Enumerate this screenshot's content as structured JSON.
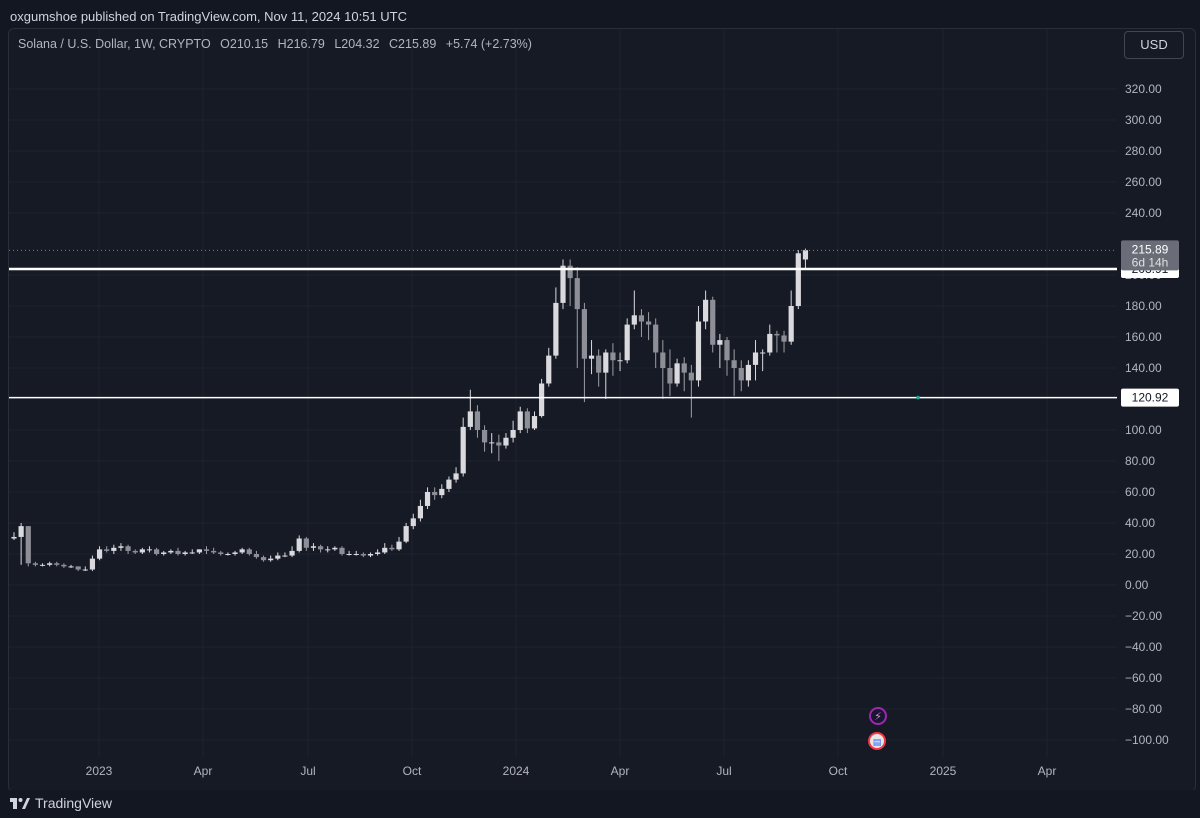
{
  "publisher": "oxgumshoe published on TradingView.com, Nov 11, 2024 10:51 UTC",
  "legend": {
    "symbol": "Solana / U.S. Dollar, 1W, CRYPTO",
    "open": "O210.15",
    "high": "H216.79",
    "low": "L204.32",
    "close": "C215.89",
    "change": "+5.74 (+2.73%)"
  },
  "currency": "USD",
  "brand": "TradingView",
  "colors": {
    "background": "#161a25",
    "candle_body": "#9e9ea6",
    "candle_wick": "#9e9ea6",
    "level_line": "#ffffff",
    "grid": "#1e222d"
  },
  "chart_data": {
    "type": "candlestick",
    "x_labels": [
      "2023",
      "Apr",
      "Jul",
      "Oct",
      "2024",
      "Apr",
      "Jul",
      "Oct",
      "2025",
      "Apr"
    ],
    "y_ticks": [
      320,
      300,
      280,
      260,
      240,
      200,
      180,
      160,
      140,
      100,
      80,
      60,
      40,
      20,
      0,
      -20,
      -40,
      -60,
      -80,
      -100
    ],
    "y_tick_labels": [
      "320.00",
      "300.00",
      "280.00",
      "260.00",
      "240.00",
      "200.00",
      "180.00",
      "160.00",
      "140.00",
      "100.00",
      "80.00",
      "60.00",
      "40.00",
      "20.00",
      "0.00",
      "−20.00",
      "−40.00",
      "−60.00",
      "−80.00",
      "−100.00"
    ],
    "ylim": [
      -110,
      335
    ],
    "horizontal_levels": [
      {
        "value": 203.91,
        "label": "203.91"
      },
      {
        "value": 120.92,
        "label": "120.92"
      }
    ],
    "last_price": {
      "value": 215.89,
      "label": "215.89",
      "countdown": "6d 14h"
    },
    "closes": [
      31,
      38,
      14,
      13,
      13,
      14,
      13,
      12,
      12,
      10,
      10,
      17,
      23,
      22,
      24,
      25,
      22,
      21,
      23,
      23,
      20,
      21,
      22,
      20,
      21,
      21,
      23,
      22,
      21,
      20,
      20,
      21,
      23,
      20,
      18,
      16,
      17,
      19,
      19,
      22,
      30,
      24,
      25,
      23,
      23,
      24,
      20,
      20,
      20,
      19,
      20,
      21,
      24,
      23,
      28,
      38,
      43,
      51,
      60,
      58,
      62,
      68,
      72,
      102,
      112,
      100,
      92,
      92,
      90,
      95,
      100,
      112,
      101,
      109,
      130,
      148,
      182,
      206,
      198,
      178,
      146,
      148,
      137,
      150,
      145,
      145,
      168,
      174,
      170,
      168,
      150,
      140,
      130,
      143,
      137,
      132,
      170,
      184,
      155,
      158,
      145,
      140,
      132,
      142,
      150,
      150,
      162,
      161,
      157,
      180,
      214,
      216
    ],
    "opens": [
      30,
      31,
      38,
      14,
      13,
      13,
      14,
      13,
      12,
      12,
      10,
      10,
      17,
      23,
      22,
      24,
      25,
      22,
      21,
      23,
      23,
      20,
      21,
      22,
      20,
      21,
      21,
      23,
      22,
      21,
      20,
      20,
      21,
      23,
      20,
      18,
      16,
      17,
      19,
      19,
      22,
      30,
      24,
      25,
      23,
      23,
      24,
      20,
      20,
      20,
      19,
      20,
      21,
      24,
      23,
      28,
      38,
      43,
      51,
      60,
      58,
      62,
      68,
      72,
      102,
      112,
      100,
      92,
      92,
      90,
      95,
      100,
      112,
      101,
      109,
      130,
      148,
      182,
      206,
      198,
      178,
      146,
      148,
      137,
      150,
      145,
      145,
      168,
      174,
      170,
      168,
      150,
      140,
      130,
      143,
      137,
      132,
      170,
      184,
      155,
      158,
      145,
      140,
      132,
      142,
      150,
      150,
      162,
      161,
      157,
      180,
      210
    ],
    "highs": [
      34,
      40,
      36,
      15,
      14,
      15,
      15,
      14,
      13,
      12,
      12,
      19,
      25,
      25,
      26,
      27,
      26,
      23,
      24,
      25,
      24,
      22,
      23,
      24,
      22,
      23,
      23,
      25,
      24,
      22,
      21,
      22,
      24,
      24,
      22,
      19,
      19,
      21,
      21,
      25,
      32,
      31,
      27,
      26,
      25,
      25,
      25,
      22,
      22,
      21,
      21,
      23,
      27,
      26,
      31,
      40,
      46,
      55,
      63,
      63,
      65,
      70,
      76,
      108,
      126,
      116,
      103,
      98,
      97,
      98,
      106,
      115,
      114,
      112,
      133,
      153,
      192,
      210,
      210,
      205,
      182,
      158,
      152,
      152,
      156,
      150,
      172,
      190,
      178,
      176,
      172,
      158,
      152,
      146,
      147,
      142,
      180,
      190,
      186,
      162,
      160,
      152,
      145,
      145,
      158,
      152,
      168,
      164,
      164,
      190,
      216,
      217
    ],
    "lows": [
      29,
      13,
      12,
      12,
      12,
      12,
      12,
      11,
      11,
      9,
      9,
      9,
      16,
      21,
      20,
      22,
      20,
      20,
      20,
      21,
      19,
      19,
      20,
      19,
      19,
      20,
      20,
      20,
      20,
      19,
      19,
      19,
      20,
      19,
      17,
      15,
      15,
      16,
      18,
      18,
      21,
      22,
      22,
      21,
      21,
      22,
      19,
      19,
      19,
      18,
      18,
      19,
      20,
      22,
      22,
      27,
      36,
      41,
      49,
      55,
      56,
      60,
      66,
      70,
      100,
      95,
      86,
      85,
      80,
      88,
      92,
      98,
      98,
      100,
      108,
      128,
      146,
      178,
      180,
      140,
      118,
      136,
      128,
      120,
      135,
      138,
      143,
      165,
      160,
      158,
      140,
      120,
      122,
      128,
      125,
      108,
      128,
      165,
      150,
      140,
      135,
      122,
      125,
      128,
      132,
      138,
      148,
      150,
      150,
      155,
      178,
      204
    ]
  }
}
